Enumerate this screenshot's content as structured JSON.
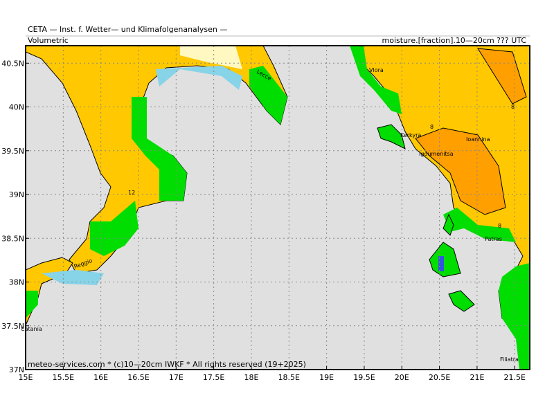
{
  "header": {
    "title": "CETA — Inst. f. Wetter— und Klimafolgenanalysen —",
    "left": "Volumetric",
    "right": "moisture.[fraction].10—20cm ??? UTC"
  },
  "footer": "meteo-services.com * (c)10—20cm IWKF * All rights reserved (19+2025)",
  "map": {
    "xlim": [
      15,
      21.7
    ],
    "ylim": [
      37,
      40.7
    ],
    "xticks": [
      {
        "value": 15,
        "label": "15E"
      },
      {
        "value": 15.5,
        "label": "15.5E"
      },
      {
        "value": 16,
        "label": "16E"
      },
      {
        "value": 16.5,
        "label": "16.5E"
      },
      {
        "value": 17,
        "label": "17E"
      },
      {
        "value": 17.5,
        "label": "17.5E"
      },
      {
        "value": 18,
        "label": "18E"
      },
      {
        "value": 18.5,
        "label": "18.5E"
      },
      {
        "value": 19,
        "label": "19E"
      },
      {
        "value": 19.5,
        "label": "19.5E"
      },
      {
        "value": 20,
        "label": "20E"
      },
      {
        "value": 20.5,
        "label": "20.5E"
      },
      {
        "value": 21,
        "label": "21E"
      },
      {
        "value": 21.5,
        "label": "21.5E"
      }
    ],
    "yticks": [
      {
        "value": 37,
        "label": "37N"
      },
      {
        "value": 37.5,
        "label": "37.5N"
      },
      {
        "value": 38,
        "label": "38N"
      },
      {
        "value": 38.5,
        "label": "38.5N"
      },
      {
        "value": 39,
        "label": "39N"
      },
      {
        "value": 39.5,
        "label": "39.5N"
      },
      {
        "value": 40,
        "label": "40N"
      },
      {
        "value": 40.5,
        "label": "40.5N"
      }
    ]
  },
  "places": [
    "Lecce",
    "Vlora",
    "Kerkyra",
    "Igoumenitsa",
    "Ioannina",
    "Patras",
    "Filiatra",
    "Catania",
    "Reggio"
  ],
  "contour_labels": [
    "12",
    "8",
    "8",
    "8"
  ]
}
